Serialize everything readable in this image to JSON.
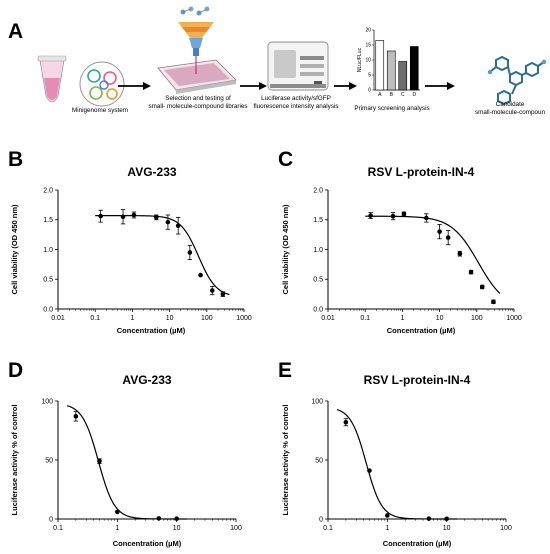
{
  "panel_labels": {
    "a": "A",
    "b": "B",
    "c": "C",
    "d": "D",
    "e": "E"
  },
  "workflow": {
    "steps": [
      {
        "label_lines": [
          "Minigenome system"
        ],
        "icon": "tube-and-plasmid-icon"
      },
      {
        "label_lines": [
          "Selection and testing of",
          "small- molecule-compound libraries"
        ],
        "icon": "funnel-plate-icon"
      },
      {
        "label_lines": [
          "Luciferase activity/sfGFP",
          "fluorescence intensity analysis"
        ],
        "icon": "plate-reader-icon"
      },
      {
        "label_lines": [
          "Primary screening analysis"
        ],
        "icon": "bar-chart-icon"
      },
      {
        "label_lines": [
          "Candidate",
          "small-molecule-compoun"
        ],
        "icon": "molecule-icon"
      }
    ],
    "arrow_icon": "right-arrow-icon",
    "mini_chart": {
      "ylabel": "NLuc/FLuc",
      "ticks": [
        "0",
        "5",
        "10",
        "15",
        "20"
      ],
      "ylim": [
        0,
        20
      ],
      "categories": [
        "A",
        "B",
        "C",
        "D"
      ],
      "values": [
        16.5,
        13.0,
        9.5,
        14.5
      ],
      "fills": [
        "#ffffff",
        "#bdbdbd",
        "#6e6e6e",
        "#000000"
      ]
    }
  },
  "chart_data": [
    {
      "id": "b",
      "type": "scatter",
      "title": "AVG-233",
      "xlabel": "Concentration (µM)",
      "ylabel": "Cell viability (OD 450 nm)",
      "xscale": "log",
      "xlim": [
        0.01,
        1000
      ],
      "ylim": [
        0,
        2.0
      ],
      "x_ticks": [
        "0.01",
        "0.1",
        "1",
        "10",
        "100",
        "1000"
      ],
      "y_ticks": [
        "0.0",
        "0.5",
        "1.0",
        "1.5",
        "2.0"
      ],
      "x": [
        0.14,
        0.56,
        1.1,
        4.4,
        9,
        17,
        35,
        68,
        140,
        270
      ],
      "y": [
        1.56,
        1.55,
        1.58,
        1.54,
        1.46,
        1.4,
        0.95,
        0.57,
        0.31,
        0.25
      ],
      "err": [
        0.1,
        0.12,
        0.05,
        0.04,
        0.12,
        0.14,
        0.12,
        0.02,
        0.07,
        0.04
      ],
      "fit": {
        "top": 1.57,
        "bottom": 0.2,
        "ec50": 60,
        "hill": 1.8
      },
      "grid": false,
      "legend": "none"
    },
    {
      "id": "c",
      "type": "scatter",
      "title": "RSV L-protein-IN-4",
      "xlabel": "Concentration (µM)",
      "ylabel": "Cell viability (OD 450 nm)",
      "xscale": "log",
      "xlim": [
        0.01,
        1000
      ],
      "ylim": [
        0,
        2.0
      ],
      "x_ticks": [
        "0.01",
        "0.1",
        "1",
        "10",
        "100",
        "1000"
      ],
      "y_ticks": [
        "0.0",
        "0.5",
        "1.0",
        "1.5",
        "2.0"
      ],
      "x": [
        0.14,
        0.56,
        1.1,
        4.4,
        10,
        17,
        35,
        70,
        140,
        280
      ],
      "y": [
        1.57,
        1.56,
        1.6,
        1.53,
        1.3,
        1.2,
        0.93,
        0.62,
        0.37,
        0.12
      ],
      "err": [
        0.05,
        0.06,
        0.03,
        0.07,
        0.12,
        0.12,
        0.04,
        0.03,
        0.03,
        0.03
      ],
      "fit": {
        "top": 1.56,
        "bottom": 0.0,
        "ec50": 110,
        "hill": 1.2
      },
      "grid": false,
      "legend": "none"
    },
    {
      "id": "d",
      "type": "scatter",
      "title": "AVG-233",
      "xlabel": "Concentration (µM)",
      "ylabel": "Luciferase activity % of control",
      "xscale": "log",
      "xlim": [
        0.1,
        100
      ],
      "ylim": [
        0,
        100
      ],
      "x_ticks": [
        "0.1",
        "1",
        "10",
        "100"
      ],
      "y_ticks": [
        "0",
        "50",
        "100"
      ],
      "x": [
        0.2,
        0.5,
        1.0,
        5.0,
        10.0
      ],
      "y": [
        87,
        49,
        6,
        0.5,
        0.3
      ],
      "err": [
        4,
        2,
        1,
        0.5,
        0.5
      ],
      "fit": {
        "top": 98,
        "bottom": 0,
        "ec50": 0.48,
        "hill": 3.2
      },
      "grid": false,
      "legend": "none"
    },
    {
      "id": "e",
      "type": "scatter",
      "title": "RSV L-protein-IN-4",
      "xlabel": "Concentration (µM)",
      "ylabel": "Luciferase activity % of control",
      "xscale": "log",
      "xlim": [
        0.1,
        100
      ],
      "ylim": [
        0,
        100
      ],
      "x_ticks": [
        "0.1",
        "1",
        "10",
        "100"
      ],
      "y_ticks": [
        "0",
        "50",
        "100"
      ],
      "x": [
        0.2,
        0.5,
        1.0,
        5.0,
        10.0
      ],
      "y": [
        82,
        41,
        3,
        0.3,
        0.2
      ],
      "err": [
        3,
        1,
        1,
        0.5,
        0.5
      ],
      "fit": {
        "top": 95,
        "bottom": 0,
        "ec50": 0.44,
        "hill": 3.3
      },
      "grid": false,
      "legend": "none"
    }
  ]
}
